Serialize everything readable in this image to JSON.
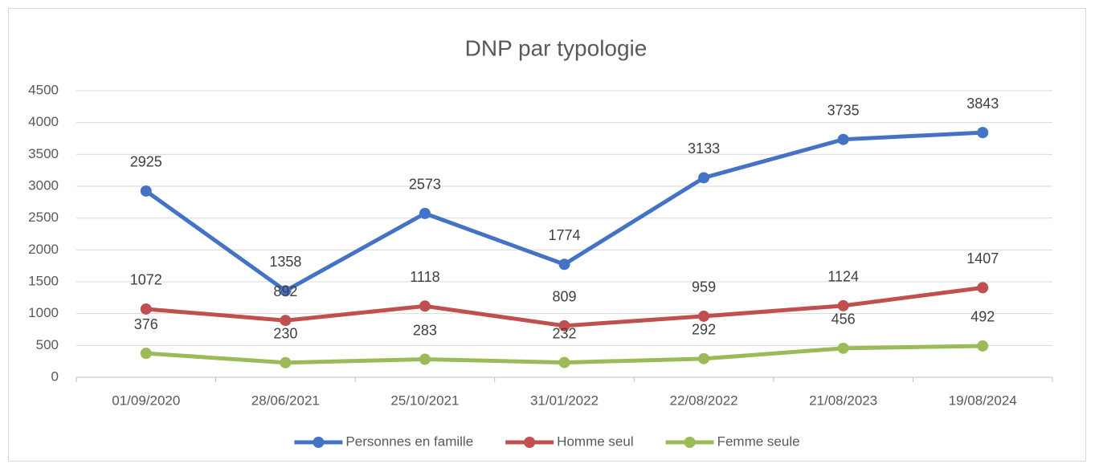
{
  "chart_data": {
    "type": "line",
    "title": "DNP par typologie",
    "categories": [
      "01/09/2020",
      "28/06/2021",
      "25/10/2021",
      "31/01/2022",
      "22/08/2022",
      "21/08/2023",
      "19/08/2024"
    ],
    "series": [
      {
        "name": "Personnes en famille",
        "color": "#4472c4",
        "values": [
          2925,
          1358,
          2573,
          1774,
          3133,
          3735,
          3843
        ]
      },
      {
        "name": "Homme seul",
        "color": "#c0504d",
        "values": [
          1072,
          892,
          1118,
          809,
          959,
          1124,
          1407
        ]
      },
      {
        "name": "Femme seule",
        "color": "#9bbb59",
        "values": [
          376,
          230,
          283,
          232,
          292,
          456,
          492
        ]
      }
    ],
    "ylim": [
      0,
      4500
    ],
    "yticks": [
      0,
      500,
      1000,
      1500,
      2000,
      2500,
      3000,
      3500,
      4000,
      4500
    ],
    "grid": true,
    "legend": "bottom"
  }
}
